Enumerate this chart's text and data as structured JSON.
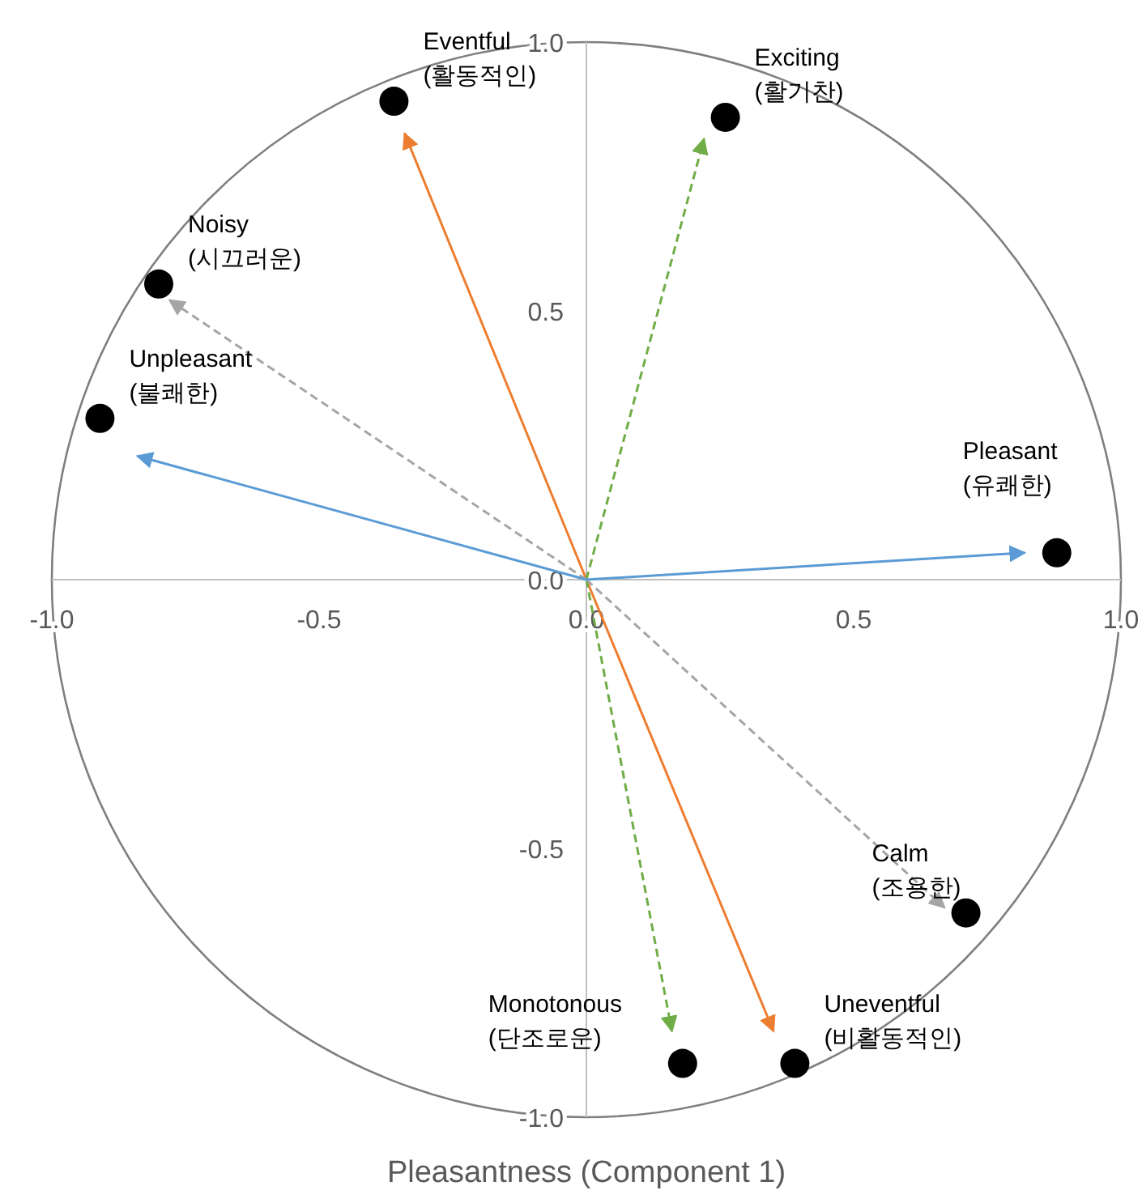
{
  "chart_data": {
    "type": "scatter",
    "xlabel": "Pleasantness (Component 1)",
    "xlim": [
      -1,
      1
    ],
    "ylim": [
      -1,
      1
    ],
    "xticks": [
      {
        "value": -1,
        "label": "-1.0"
      },
      {
        "value": -0.5,
        "label": "-0.5"
      },
      {
        "value": 0,
        "label": "0.0"
      },
      {
        "value": 0.5,
        "label": "0.5"
      },
      {
        "value": 1,
        "label": "1.0"
      }
    ],
    "yticks": [
      {
        "value": -1,
        "label": "-1.0"
      },
      {
        "value": -0.5,
        "label": "-0.5"
      },
      {
        "value": 0,
        "label": "0.0"
      },
      {
        "value": 0.5,
        "label": "0.5"
      },
      {
        "value": 1,
        "label": "1.0"
      }
    ],
    "series": [
      {
        "type": "scatter",
        "marker": "circle",
        "color": "#000000",
        "x": [
          -0.36,
          0.26,
          -0.8,
          -0.91,
          0.88,
          0.71,
          0.39,
          0.18
        ],
        "values": [
          0.89,
          0.86,
          0.55,
          0.3,
          0.05,
          -0.62,
          -0.9,
          -0.9
        ]
      },
      {
        "type": "line",
        "color": "#ed7d31",
        "line_style": "solid",
        "x": [
          0,
          -0.34
        ],
        "values": [
          0,
          0.83
        ]
      },
      {
        "type": "line",
        "color": "#ed7d31",
        "line_style": "solid",
        "x": [
          0,
          0.35
        ],
        "values": [
          0,
          -0.84
        ]
      },
      {
        "type": "line",
        "color": "#70ad47",
        "line_style": "dashed",
        "x": [
          0,
          0.22
        ],
        "values": [
          0,
          0.82
        ]
      },
      {
        "type": "line",
        "color": "#70ad47",
        "line_style": "dashed",
        "x": [
          0,
          0.16
        ],
        "values": [
          0,
          -0.84
        ]
      },
      {
        "type": "line",
        "color": "#a5a5a5",
        "line_style": "dashed",
        "x": [
          0,
          -0.78
        ],
        "values": [
          0,
          0.52
        ]
      },
      {
        "type": "line",
        "color": "#a5a5a5",
        "line_style": "dashed",
        "x": [
          0,
          0.67
        ],
        "values": [
          0,
          -0.61
        ]
      },
      {
        "type": "line",
        "color": "#5b9bd5",
        "line_style": "solid",
        "x": [
          0,
          -0.84
        ],
        "values": [
          0,
          0.23
        ]
      },
      {
        "type": "line",
        "color": "#5b9bd5",
        "line_style": "solid",
        "x": [
          0,
          0.82
        ],
        "values": [
          0,
          0.05
        ]
      }
    ],
    "annotations": [
      {
        "text": "Eventful\n(활동적인)",
        "x": -0.36,
        "y": 0.89
      },
      {
        "text": "Exciting\n(활기찬)",
        "x": 0.26,
        "y": 0.86
      },
      {
        "text": "Noisy\n(시끄러운)",
        "x": -0.8,
        "y": 0.55
      },
      {
        "text": "Unpleasant\n(불쾌한)",
        "x": -0.91,
        "y": 0.3
      },
      {
        "text": "Pleasant\n(유쾌한)",
        "x": 0.88,
        "y": 0.05
      },
      {
        "text": "Calm\n(조용한)",
        "x": 0.71,
        "y": -0.62
      },
      {
        "text": "Uneventful\n(비활동적인)",
        "x": 0.39,
        "y": -0.9
      },
      {
        "text": "Monotonous\n(단조로운)",
        "x": 0.18,
        "y": -0.9
      }
    ]
  }
}
